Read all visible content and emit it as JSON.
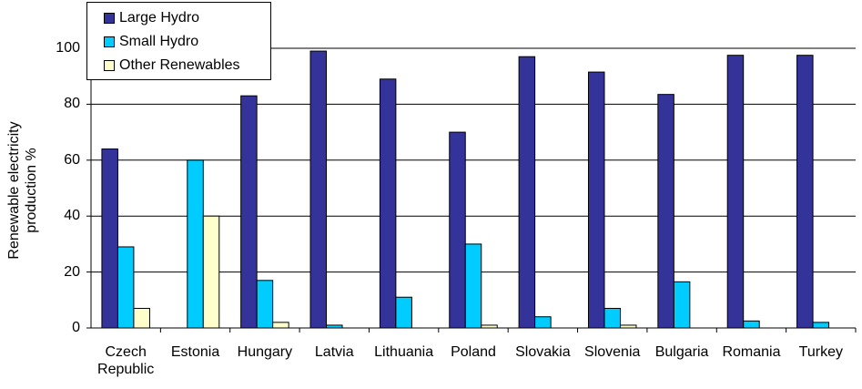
{
  "chart_data": {
    "type": "bar",
    "y_label": "Renewable electricity production %",
    "categories": [
      "Czech Republic",
      "Estonia",
      "Hungary",
      "Latvia",
      "Lithuania",
      "Poland",
      "Slovakia",
      "Slovenia",
      "Bulgaria",
      "Romania",
      "Turkey"
    ],
    "series": [
      {
        "name": "Large Hydro",
        "color": "#333399",
        "values": [
          64,
          0,
          83,
          99,
          89,
          70,
          97,
          91.5,
          83.5,
          97.5,
          97.5
        ]
      },
      {
        "name": "Small Hydro",
        "color": "#00ccff",
        "values": [
          29,
          60,
          17,
          1,
          11,
          30,
          4,
          7,
          16.5,
          2.5,
          2
        ]
      },
      {
        "name": "Other Renewables",
        "color": "#ffffcc",
        "values": [
          7,
          40,
          2,
          0,
          0,
          1,
          0,
          1,
          0,
          0,
          0
        ]
      }
    ],
    "ylim": [
      0,
      100
    ],
    "yticks": [
      0,
      20,
      40,
      60,
      80,
      100
    ],
    "grid": true,
    "legend": "top-left"
  }
}
